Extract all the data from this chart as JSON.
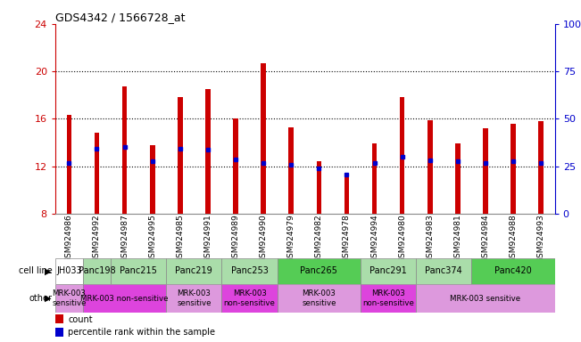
{
  "title": "GDS4342 / 1566728_at",
  "samples": [
    "GSM924986",
    "GSM924992",
    "GSM924987",
    "GSM924995",
    "GSM924985",
    "GSM924991",
    "GSM924989",
    "GSM924990",
    "GSM924979",
    "GSM924982",
    "GSM924978",
    "GSM924994",
    "GSM924980",
    "GSM924983",
    "GSM924981",
    "GSM924984",
    "GSM924988",
    "GSM924993"
  ],
  "bar_heights": [
    16.3,
    14.8,
    18.7,
    13.8,
    17.8,
    18.5,
    16.0,
    20.7,
    15.3,
    12.4,
    11.3,
    13.9,
    17.8,
    15.9,
    13.9,
    15.2,
    15.6,
    15.8
  ],
  "blue_marker_y": [
    12.3,
    13.5,
    13.6,
    12.4,
    13.5,
    13.4,
    12.6,
    12.3,
    12.1,
    11.8,
    11.3,
    12.3,
    12.8,
    12.5,
    12.4,
    12.3,
    12.4,
    12.3
  ],
  "bar_color": "#cc0000",
  "blue_color": "#0000cc",
  "ymin": 8,
  "ymax": 24,
  "yticks_left": [
    8,
    12,
    16,
    20,
    24
  ],
  "yticks_right": [
    0,
    25,
    50,
    75,
    100
  ],
  "ytick_labels_right": [
    "0",
    "25",
    "50",
    "75",
    "100%"
  ],
  "cell_lines": [
    {
      "label": "JH033",
      "start": 0,
      "end": 1,
      "color": "#ffffff"
    },
    {
      "label": "Panc198",
      "start": 1,
      "end": 2,
      "color": "#aaddaa"
    },
    {
      "label": "Panc215",
      "start": 2,
      "end": 4,
      "color": "#aaddaa"
    },
    {
      "label": "Panc219",
      "start": 4,
      "end": 6,
      "color": "#aaddaa"
    },
    {
      "label": "Panc253",
      "start": 6,
      "end": 8,
      "color": "#aaddaa"
    },
    {
      "label": "Panc265",
      "start": 8,
      "end": 11,
      "color": "#55cc55"
    },
    {
      "label": "Panc291",
      "start": 11,
      "end": 13,
      "color": "#aaddaa"
    },
    {
      "label": "Panc374",
      "start": 13,
      "end": 15,
      "color": "#aaddaa"
    },
    {
      "label": "Panc420",
      "start": 15,
      "end": 18,
      "color": "#55cc55"
    }
  ],
  "other_groups": [
    {
      "label": "MRK-003\nsensitive",
      "start": 0,
      "end": 1,
      "color": "#dd99dd"
    },
    {
      "label": "MRK-003 non-sensitive",
      "start": 1,
      "end": 4,
      "color": "#dd44dd"
    },
    {
      "label": "MRK-003\nsensitive",
      "start": 4,
      "end": 6,
      "color": "#dd99dd"
    },
    {
      "label": "MRK-003\nnon-sensitive",
      "start": 6,
      "end": 8,
      "color": "#dd44dd"
    },
    {
      "label": "MRK-003\nsensitive",
      "start": 8,
      "end": 11,
      "color": "#dd99dd"
    },
    {
      "label": "MRK-003\nnon-sensitive",
      "start": 11,
      "end": 13,
      "color": "#dd44dd"
    },
    {
      "label": "MRK-003 sensitive",
      "start": 13,
      "end": 18,
      "color": "#dd99dd"
    }
  ],
  "bar_width": 0.18,
  "axis_color_left": "#cc0000",
  "axis_color_right": "#0000cc"
}
